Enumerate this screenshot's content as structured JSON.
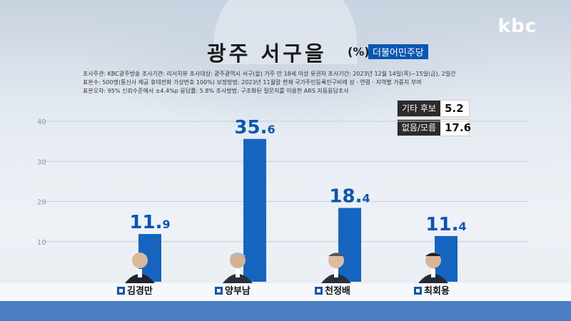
{
  "logo": "kbc",
  "header": {
    "title": "광주 서구을",
    "unit": "(%)",
    "party": "더불어민주당"
  },
  "survey": {
    "line1": "조사주관: KBC광주방송   조사기관: 리서치뷰   조사대상: 광주광역시 서구(을) 거주 만 18세 이상 유권자   조사기간: 2023년 12월 14일(목)~15일(금), 2일간",
    "line2": "표본수: 500명(통신사 제공 휴대전화 가상번호 100%)   보정방법: 2023년 11월말 현재 국가주민등록인구비례 성 · 연령 · 지역별 가중치 부여",
    "line3": "표본오차: 95% 신뢰수준에서 ±4.4%p    응답률: 5.8%   조사방법: 구조화된 질문지를 이용한 ARS 자동응답조사"
  },
  "side": {
    "other_label": "기타 후보",
    "other_value": "5.2",
    "none_label": "없음/모름",
    "none_value": "17.6"
  },
  "colors": {
    "bar": "#1565c0",
    "accent": "#0a55b3",
    "band": "#4b7fc2"
  },
  "chart_data": {
    "type": "bar",
    "categories": [
      "김경만",
      "양부남",
      "천정배",
      "최회용"
    ],
    "values": [
      11.9,
      35.6,
      18.4,
      11.4
    ],
    "yticks": [
      10,
      20,
      30,
      40
    ],
    "ylim": [
      0,
      40
    ],
    "grid": true,
    "ylabel": "",
    "xlabel": ""
  }
}
